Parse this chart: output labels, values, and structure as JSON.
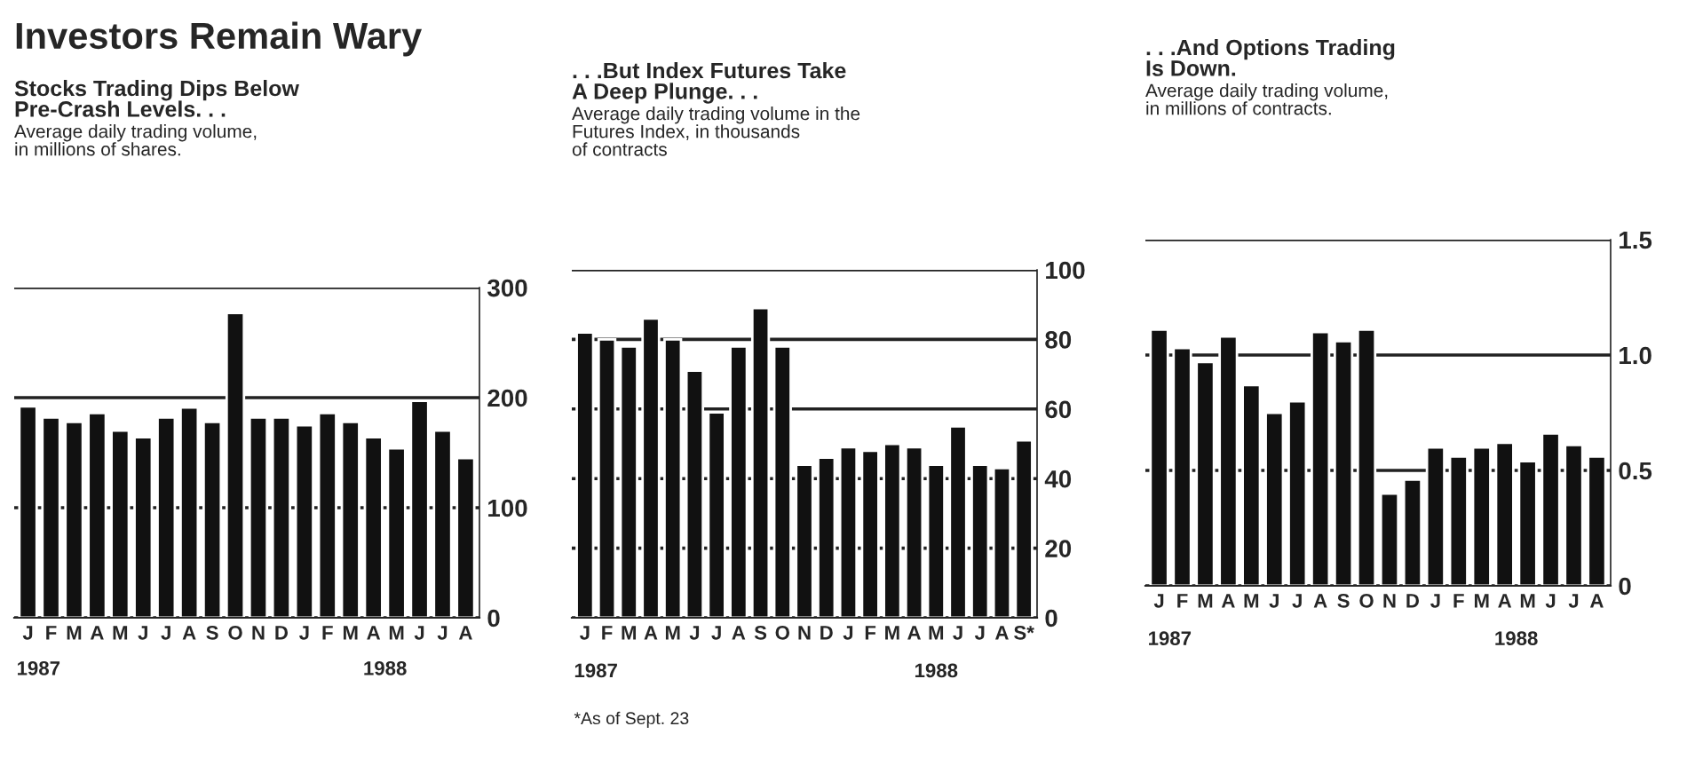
{
  "chart_data": [
    {
      "type": "bar",
      "title": "Investors Remain Wary",
      "subtitle": "Stocks Trading Dips Below\nPre-Crash Levels. . .",
      "annotations": [
        "Average daily trading volume,\nin millions of shares.",
        "1987",
        "1988"
      ],
      "categories": [
        "J",
        "F",
        "M",
        "A",
        "M",
        "J",
        "J",
        "A",
        "S",
        "O",
        "N",
        "D",
        "J",
        "F",
        "M",
        "A",
        "M",
        "J",
        "J",
        "A"
      ],
      "values": [
        192,
        182,
        178,
        186,
        170,
        164,
        182,
        191,
        178,
        277,
        182,
        182,
        175,
        186,
        178,
        164,
        154,
        197,
        170,
        145
      ],
      "color": "#111111",
      "ylim": [
        0,
        300
      ],
      "yticks": [
        0,
        100,
        200,
        300
      ],
      "grid": "y"
    },
    {
      "type": "bar",
      "subtitle": ". . .But Index Futures Take\nA Deep Plunge. . .",
      "annotations": [
        "Average daily trading volume in the\nFutures Index, in thousands\nof contracts",
        "1987",
        "1988",
        "*As of Sept. 23"
      ],
      "categories": [
        "J",
        "F",
        "M",
        "A",
        "M",
        "J",
        "J",
        "A",
        "S",
        "O",
        "N",
        "D",
        "J",
        "F",
        "M",
        "A",
        "M",
        "J",
        "J",
        "A",
        "S*"
      ],
      "values": [
        82,
        80,
        78,
        86,
        80,
        71,
        59,
        78,
        89,
        78,
        44,
        46,
        49,
        48,
        50,
        49,
        44,
        55,
        44,
        43,
        51
      ],
      "color": "#111111",
      "ylim": [
        0,
        100
      ],
      "yticks": [
        0,
        20,
        40,
        60,
        80,
        100
      ],
      "grid": "y"
    },
    {
      "type": "bar",
      "subtitle": ". . .And Options Trading\nIs Down.",
      "annotations": [
        "Average daily trading volume,\nin millions of contracts.",
        "1987",
        "1988"
      ],
      "categories": [
        "J",
        "F",
        "M",
        "A",
        "M",
        "J",
        "J",
        "A",
        "S",
        "O",
        "N",
        "D",
        "J",
        "F",
        "M",
        "A",
        "M",
        "J",
        "J",
        "A"
      ],
      "values": [
        1.11,
        1.03,
        0.97,
        1.08,
        0.87,
        0.75,
        0.8,
        1.1,
        1.06,
        1.11,
        0.4,
        0.46,
        0.6,
        0.56,
        0.6,
        0.62,
        0.54,
        0.66,
        0.61,
        0.56
      ],
      "color": "#111111",
      "ylim": [
        0,
        1.5
      ],
      "yticks": [
        0,
        0.5,
        {
          "value": 1,
          "label": "1.0"
        },
        1.5
      ],
      "grid": "y"
    }
  ]
}
